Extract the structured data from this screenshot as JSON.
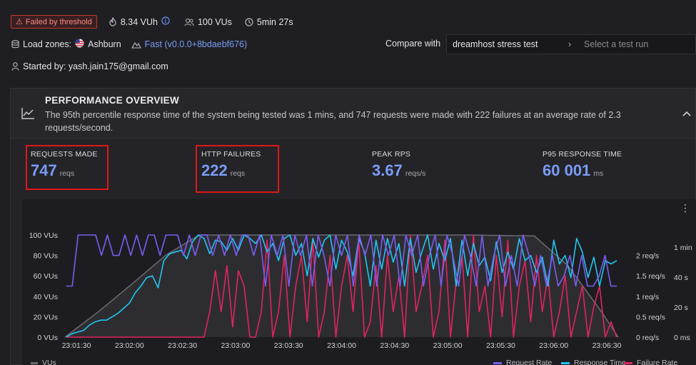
{
  "header": {
    "status_badge": "Failed by threshold",
    "vuh": "8.34 VUh",
    "vus": "100 VUs",
    "duration": "5min 27s",
    "load_zones_label": "Load zones:",
    "load_zone": "Ashburn",
    "mode_link": "Fast (v0.0.0+8bdaebf676)",
    "started_by": "Started by: yash.jain175@gmail.com"
  },
  "compare": {
    "label": "Compare with",
    "selected": "dreamhost stress test",
    "placeholder": "Select a test run"
  },
  "overview": {
    "title": "PERFORMANCE OVERVIEW",
    "description": "The 95th percentile response time of the system being tested was 1 mins, and 747 requests were made with 222 failures at an average rate of 2.3 requests/second."
  },
  "stats": [
    {
      "label": "REQUESTS MADE",
      "value": "747",
      "unit": "reqs"
    },
    {
      "label": "HTTP FAILURES",
      "value": "222",
      "unit": "reqs"
    },
    {
      "label": "PEAK RPS",
      "value": "3.67",
      "unit": "reqs/s"
    },
    {
      "label": "P95 RESPONSE TIME",
      "value": "60 001",
      "unit": "ms"
    }
  ],
  "chart_data": {
    "type": "line",
    "x_ticks": [
      "23:01:30",
      "23:02:00",
      "23:02:30",
      "23:03:00",
      "23:03:30",
      "23:04:00",
      "23:04:30",
      "23:05:00",
      "23:05:30",
      "23:06:00",
      "23:06:30"
    ],
    "left_axis_ticks": [
      "0 VUs",
      "20 VUs",
      "40 VUs",
      "60 VUs",
      "80 VUs",
      "100 VUs"
    ],
    "right_axis1_ticks": [
      "0 req/s",
      "0.5 req/s",
      "1 req/s",
      "1.5 req/s",
      "2 req/s"
    ],
    "right_axis2_ticks": [
      "0 ms",
      "20 s",
      "40 s",
      "1 min"
    ],
    "series": [
      {
        "name": "VUs",
        "axis": "vus",
        "color": "#55555c",
        "x": [
          0,
          20,
          40,
          60,
          80,
          100,
          120,
          140,
          160,
          200,
          240,
          280,
          300,
          320,
          330
        ],
        "values": [
          0,
          25,
          52,
          80,
          100,
          100,
          100,
          100,
          100,
          100,
          100,
          99,
          70,
          25,
          0
        ]
      },
      {
        "name": "Request Rate",
        "axis": "req/s",
        "color": "#7b5cf0",
        "values": [
          1,
          1,
          2,
          2,
          2,
          2,
          1.6,
          2,
          1.6,
          1.6,
          2,
          1.6,
          2,
          1.6,
          2,
          2,
          1.6,
          2,
          2,
          2,
          1.6,
          2,
          1.6,
          2,
          2,
          1.6,
          2,
          1.6,
          2,
          1.6,
          2,
          2,
          1.6,
          2,
          1,
          2,
          1.6,
          2,
          1,
          2,
          1.6,
          2,
          1,
          2,
          1.6,
          1,
          2,
          1.6,
          2,
          1,
          2,
          1.6,
          2,
          1,
          2,
          1.6,
          2,
          1,
          2,
          1.6,
          2,
          1,
          1.6,
          2,
          1,
          2,
          1.6,
          1,
          2,
          1.6,
          1,
          2,
          1,
          1.6,
          2,
          1,
          1.6,
          1,
          2,
          1.6,
          1,
          1.6,
          1,
          1.6,
          1,
          1.2,
          1.6,
          1,
          1.6,
          1,
          1,
          1.2,
          1.6,
          1,
          1
        ]
      },
      {
        "name": "Response Time",
        "axis": "time",
        "color": "#22c5f0",
        "values": [
          0,
          2,
          3,
          4,
          7,
          9,
          10,
          10,
          12,
          14,
          17,
          20,
          26,
          30,
          35,
          36,
          29,
          45,
          49,
          50,
          51,
          46,
          56,
          60,
          58,
          49,
          57,
          56,
          51,
          58,
          51,
          60,
          58,
          55,
          60,
          50,
          55,
          45,
          58,
          60,
          48,
          55,
          36,
          58,
          47,
          57,
          60,
          40,
          57,
          50,
          36,
          58,
          50,
          30,
          57,
          40,
          58,
          44,
          55,
          30,
          58,
          38,
          50,
          60,
          40,
          55,
          45,
          58,
          30,
          57,
          36,
          55,
          42,
          47,
          33,
          56,
          38,
          50,
          40,
          58,
          45,
          48,
          38,
          47,
          30,
          57,
          43,
          48,
          35,
          58,
          50,
          35,
          47,
          30,
          45,
          43,
          45
        ]
      },
      {
        "name": "Failure Rate",
        "axis": "req/s",
        "color": "#e0245e",
        "values": [
          0,
          0,
          0,
          0,
          0,
          0,
          0,
          0,
          0,
          0,
          0,
          0,
          0,
          0,
          0,
          0,
          0,
          0,
          0,
          0,
          0,
          0,
          0,
          0,
          0,
          0.5,
          1.3,
          0.5,
          1.4,
          0.2,
          1.3,
          1.0,
          0,
          0,
          0.5,
          1.9,
          0,
          0.5,
          1.6,
          0,
          1.0,
          1.6,
          0.3,
          1.9,
          0,
          0.5,
          1.6,
          0,
          1.0,
          1.6,
          0.5,
          1.9,
          0,
          0.3,
          1.4,
          0,
          1.6,
          0.5,
          1.2,
          0,
          2,
          0.5,
          1.0,
          1.6,
          0,
          0.5,
          1.9,
          0,
          1.1,
          1.6,
          0,
          2,
          0.5,
          1.0,
          0,
          1.6,
          0.4,
          1.9,
          0,
          1.0,
          1.5,
          0.3,
          1.6,
          0.5,
          1.2,
          0,
          0.5,
          1.2,
          0,
          0.5,
          1.0,
          0,
          0.6,
          1.0,
          0,
          0.3,
          0
        ]
      }
    ],
    "legend": [
      "VUs",
      "Request Rate",
      "Response Time",
      "Failure Rate"
    ],
    "legend_placement": "bottom"
  }
}
